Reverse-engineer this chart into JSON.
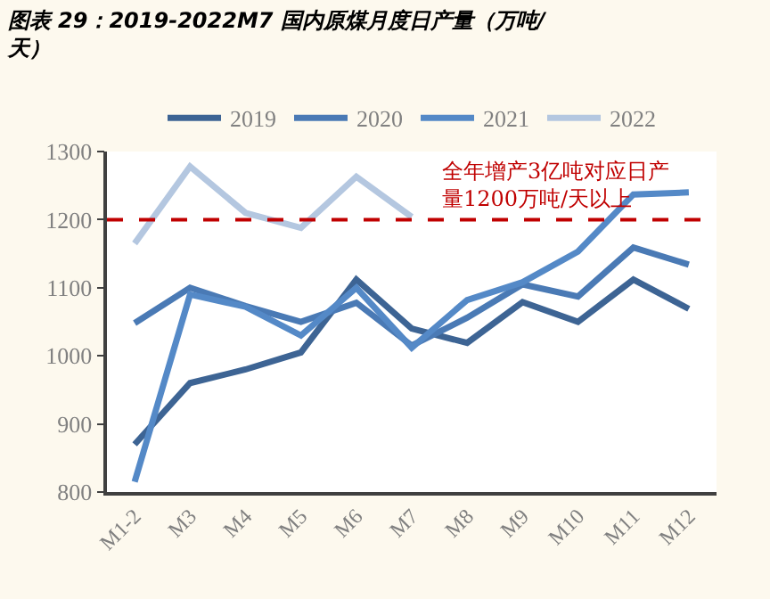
{
  "chart_data": {
    "type": "line",
    "title": "图表 29：2019-2022M7 国内原煤月度日产量（万吨/天）",
    "categories": [
      "M1-2",
      "M3",
      "M4",
      "M5",
      "M6",
      "M7",
      "M8",
      "M9",
      "M10",
      "M11",
      "M12"
    ],
    "series": [
      {
        "name": "2019",
        "color": "#3d6494",
        "values": [
          870,
          960,
          980,
          1005,
          1112,
          1040,
          1019,
          1079,
          1050,
          1112,
          1069
        ]
      },
      {
        "name": "2020",
        "color": "#4a7ab5",
        "values": [
          1048,
          1100,
          1073,
          1050,
          1078,
          1015,
          1056,
          1105,
          1087,
          1159,
          1134
        ]
      },
      {
        "name": "2021",
        "color": "#5489c7",
        "values": [
          815,
          1090,
          1072,
          1030,
          1100,
          1012,
          1082,
          1108,
          1153,
          1237,
          1240
        ]
      },
      {
        "name": "2022",
        "color": "#b4c7e0",
        "values": [
          1165,
          1278,
          1210,
          1188,
          1263,
          1204,
          null,
          null,
          null,
          null,
          null
        ]
      }
    ],
    "ylim": [
      800,
      1300
    ],
    "yticks": [
      800,
      900,
      1000,
      1100,
      1200,
      1300
    ],
    "ref_lines": [
      {
        "axis": "y",
        "value": 1200,
        "label": "全年增产3亿吨对应日产量1200万吨/天以上",
        "color": "#c00000",
        "line_style": "dashed"
      }
    ],
    "legend": "top",
    "marker": "none",
    "line_style": "solid"
  }
}
